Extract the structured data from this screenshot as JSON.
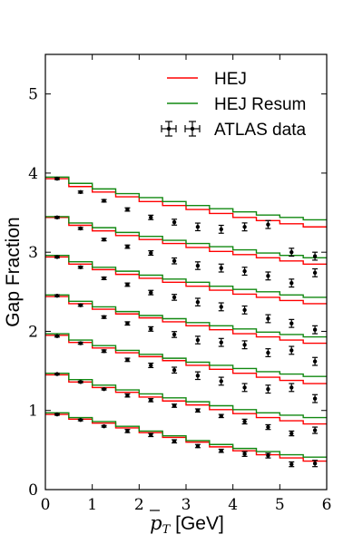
{
  "chart_data": {
    "type": "line",
    "xlabel_var": "p",
    "xlabel_sub": "T",
    "xlabel_unit": " [GeV]",
    "ylabel": "Gap Fraction",
    "xlim": [
      0,
      6
    ],
    "ylim": [
      0,
      5.5
    ],
    "xticks": [
      "0",
      "1",
      "2",
      "3",
      "4",
      "5",
      "6"
    ],
    "yticks": [
      "0",
      "1",
      "2",
      "3",
      "4",
      "5"
    ],
    "legend_position": "top-right",
    "bin_edges": [
      0,
      0.5,
      1.0,
      1.5,
      2.0,
      2.5,
      3.0,
      3.5,
      4.0,
      4.5,
      5.0,
      5.5,
      6.0
    ],
    "series": [
      {
        "name": "HEJ",
        "color": "#ff0000",
        "groups": [
          [
            0.95,
            0.89,
            0.84,
            0.78,
            0.72,
            0.66,
            0.6,
            0.54,
            0.49,
            0.44,
            0.4,
            0.36
          ],
          [
            1.45,
            1.36,
            1.29,
            1.23,
            1.17,
            1.12,
            1.07,
            1.01,
            0.96,
            0.91,
            0.87,
            0.83
          ],
          [
            1.95,
            1.86,
            1.79,
            1.73,
            1.68,
            1.63,
            1.57,
            1.52,
            1.47,
            1.42,
            1.38,
            1.34
          ],
          [
            2.44,
            2.35,
            2.28,
            2.22,
            2.17,
            2.12,
            2.07,
            2.02,
            1.97,
            1.93,
            1.89,
            1.85
          ],
          [
            2.94,
            2.85,
            2.78,
            2.72,
            2.67,
            2.62,
            2.57,
            2.52,
            2.47,
            2.43,
            2.39,
            2.35
          ],
          [
            3.44,
            3.34,
            3.27,
            3.21,
            3.16,
            3.11,
            3.06,
            3.01,
            2.97,
            2.93,
            2.89,
            2.85
          ],
          [
            3.93,
            3.83,
            3.76,
            3.7,
            3.64,
            3.59,
            3.54,
            3.49,
            3.44,
            3.4,
            3.36,
            3.32
          ]
        ]
      },
      {
        "name": "HEJ Resum",
        "color": "#118811",
        "groups": [
          [
            0.97,
            0.91,
            0.86,
            0.8,
            0.74,
            0.68,
            0.62,
            0.57,
            0.52,
            0.48,
            0.44,
            0.41
          ],
          [
            1.47,
            1.39,
            1.32,
            1.26,
            1.21,
            1.16,
            1.11,
            1.06,
            1.01,
            0.97,
            0.94,
            0.91
          ],
          [
            1.97,
            1.89,
            1.82,
            1.76,
            1.71,
            1.66,
            1.61,
            1.57,
            1.53,
            1.49,
            1.46,
            1.43
          ],
          [
            2.46,
            2.38,
            2.31,
            2.25,
            2.2,
            2.16,
            2.11,
            2.07,
            2.03,
            1.99,
            1.96,
            1.93
          ],
          [
            2.96,
            2.88,
            2.81,
            2.76,
            2.71,
            2.66,
            2.62,
            2.57,
            2.53,
            2.5,
            2.46,
            2.43
          ],
          [
            3.45,
            3.37,
            3.31,
            3.25,
            3.2,
            3.15,
            3.11,
            3.07,
            3.03,
            2.99,
            2.96,
            2.93
          ],
          [
            3.95,
            3.87,
            3.8,
            3.74,
            3.69,
            3.64,
            3.59,
            3.55,
            3.51,
            3.47,
            3.44,
            3.41
          ]
        ]
      }
    ],
    "data_series": {
      "name": "ATLAS data",
      "color": "#000000",
      "groups": [
        {
          "y": [
            0.95,
            0.88,
            0.8,
            0.74,
            0.69,
            0.61,
            0.55,
            0.49,
            0.45,
            0.43,
            0.32,
            0.33
          ],
          "yerr": [
            0.01,
            0.01,
            0.01,
            0.02,
            0.02,
            0.02,
            0.02,
            0.02,
            0.03,
            0.03,
            0.03,
            0.04
          ]
        },
        {
          "y": [
            1.46,
            1.36,
            1.27,
            1.19,
            1.13,
            1.06,
            1.0,
            0.93,
            0.86,
            0.79,
            0.71,
            0.75
          ],
          "yerr": [
            0.01,
            0.01,
            0.01,
            0.02,
            0.02,
            0.02,
            0.02,
            0.02,
            0.03,
            0.03,
            0.03,
            0.04
          ]
        },
        {
          "y": [
            1.94,
            1.85,
            1.75,
            1.64,
            1.57,
            1.51,
            1.44,
            1.37,
            1.29,
            1.27,
            1.29,
            1.15
          ]
        },
        {
          "y": [
            2.45,
            2.33,
            2.18,
            2.1,
            2.03,
            1.96,
            1.89,
            1.86,
            1.83,
            1.73,
            1.76,
            1.62
          ]
        },
        {
          "y": [
            2.94,
            2.81,
            2.67,
            2.59,
            2.49,
            2.43,
            2.37,
            2.31,
            2.27,
            2.16,
            2.1,
            2.02
          ]
        },
        {
          "y": [
            3.44,
            3.3,
            3.16,
            3.07,
            2.99,
            2.89,
            2.83,
            2.8,
            2.76,
            2.7,
            2.61,
            2.74
          ]
        },
        {
          "y": [
            3.93,
            3.76,
            3.65,
            3.54,
            3.44,
            3.38,
            3.32,
            3.29,
            3.32,
            3.35,
            3.0,
            2.95
          ]
        }
      ]
    }
  }
}
